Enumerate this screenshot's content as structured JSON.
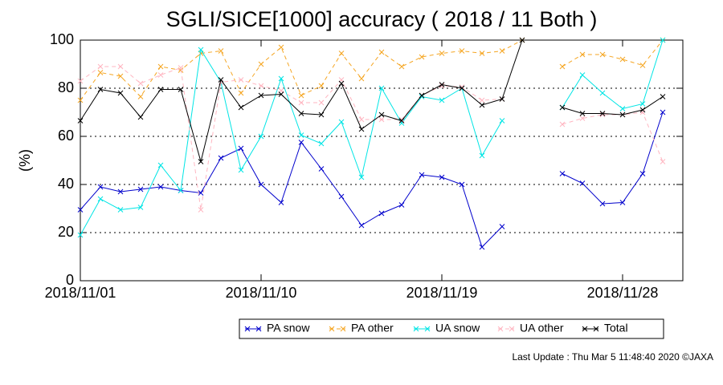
{
  "chart_data": {
    "type": "line",
    "title": "SGLI/SICE[1000] accuracy ( 2018 / 11 Both )",
    "y_label": "(%)",
    "footer": "Last Update : Thu Mar  5 11:48:40 2020 ©JAXA",
    "x": [
      "2018/11/01",
      "2018/11/02",
      "2018/11/03",
      "2018/11/04",
      "2018/11/05",
      "2018/11/06",
      "2018/11/07",
      "2018/11/08",
      "2018/11/09",
      "2018/11/10",
      "2018/11/11",
      "2018/11/12",
      "2018/11/13",
      "2018/11/14",
      "2018/11/15",
      "2018/11/16",
      "2018/11/17",
      "2018/11/18",
      "2018/11/19",
      "2018/11/20",
      "2018/11/21",
      "2018/11/22",
      "2018/11/23",
      "2018/11/24",
      "2018/11/25",
      "2018/11/26",
      "2018/11/27",
      "2018/11/28",
      "2018/11/29",
      "2018/11/30"
    ],
    "xlim": [
      "2018/11/01",
      "2018/12/01"
    ],
    "xticks": [
      "2018/11/01",
      "2018/11/10",
      "2018/11/19",
      "2018/11/28"
    ],
    "ylim": [
      0,
      100
    ],
    "yticks": [
      0,
      20,
      40,
      60,
      80,
      100
    ],
    "grid": true,
    "series": [
      {
        "name": "PA snow",
        "color": "#0000cc",
        "dash": false,
        "values": [
          29.5,
          39,
          37,
          38,
          39,
          37.5,
          36.5,
          51,
          55,
          40,
          32.5,
          57.5,
          46.5,
          35,
          23,
          28,
          31.5,
          44,
          43,
          40,
          14,
          22.5,
          null,
          null,
          44.5,
          40.5,
          32,
          32.5,
          44.5,
          70
        ]
      },
      {
        "name": "PA other",
        "color": "#f5a623",
        "dash": true,
        "values": [
          75,
          86.5,
          85,
          76.5,
          89,
          87.5,
          94.5,
          95.5,
          78,
          90,
          97,
          77,
          81,
          94.5,
          84,
          95,
          89,
          93,
          94.5,
          95.5,
          94.5,
          95.5,
          100,
          null,
          89,
          94,
          94,
          92,
          89.5,
          100
        ]
      },
      {
        "name": "UA snow",
        "color": "#00e5e5",
        "dash": false,
        "values": [
          19,
          34,
          29.5,
          30.5,
          48,
          37.5,
          96,
          82.5,
          46,
          60,
          84,
          60.5,
          57,
          66,
          43,
          80,
          65.5,
          76.5,
          75,
          80,
          52,
          66.5,
          null,
          null,
          72,
          85.5,
          78,
          71.5,
          73.5,
          100
        ]
      },
      {
        "name": "UA other",
        "color": "#ffb6c1",
        "dash": true,
        "values": [
          83,
          89,
          89,
          82,
          85.5,
          88.5,
          29.5,
          82.5,
          83.5,
          81,
          79,
          74,
          74,
          83.5,
          67,
          67,
          67,
          77,
          81,
          80.5,
          75,
          75.5,
          null,
          null,
          65,
          67.5,
          69,
          69,
          70,
          49.5
        ]
      },
      {
        "name": "Total",
        "color": "#000000",
        "dash": false,
        "values": [
          66.5,
          79.5,
          78,
          68,
          79.5,
          79.5,
          49.5,
          83.5,
          72,
          77,
          77.5,
          69.5,
          69,
          82,
          63,
          69,
          66.5,
          77,
          81.5,
          80,
          73,
          75.5,
          100,
          null,
          72,
          69.5,
          69.5,
          69,
          71,
          76.5
        ]
      }
    ]
  }
}
